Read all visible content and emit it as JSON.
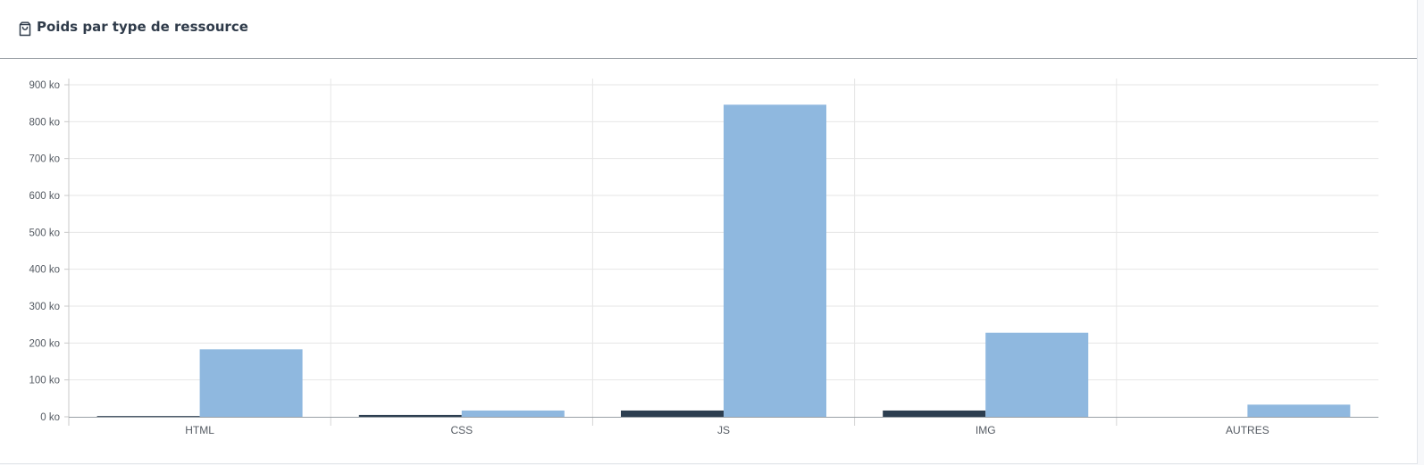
{
  "panel": {
    "title": "Poids par type de ressource",
    "icon": "bag-icon"
  },
  "chart_data": {
    "type": "bar",
    "categories": [
      "HTML",
      "CSS",
      "JS",
      "IMG",
      "AUTRES"
    ],
    "series": [
      {
        "color": "#2c3e50",
        "values": [
          2,
          5,
          17,
          17,
          0
        ]
      },
      {
        "color": "#8fb8df",
        "values": [
          183,
          17,
          846,
          228,
          33
        ]
      }
    ],
    "y_ticks": [
      {
        "value": 0,
        "label": "0 ko"
      },
      {
        "value": 100,
        "label": "100 ko"
      },
      {
        "value": 200,
        "label": "200 ko"
      },
      {
        "value": 300,
        "label": "300 ko"
      },
      {
        "value": 400,
        "label": "400 ko"
      },
      {
        "value": 500,
        "label": "500 ko"
      },
      {
        "value": 600,
        "label": "600 ko"
      },
      {
        "value": 700,
        "label": "700 ko"
      },
      {
        "value": 800,
        "label": "800 ko"
      },
      {
        "value": 900,
        "label": "900 ko"
      }
    ],
    "ylim": [
      0,
      900
    ],
    "unit": "ko",
    "grid": true,
    "legend": "none"
  }
}
